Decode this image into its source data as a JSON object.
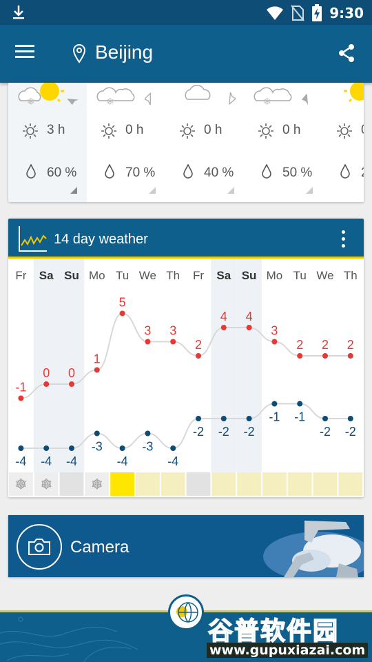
{
  "status_bar": {
    "time": "9:30",
    "icons": [
      "download-icon",
      "wifi-icon",
      "no-sim-icon",
      "battery-charging-icon"
    ]
  },
  "app_bar": {
    "city": "Beijing",
    "icons": [
      "menu-icon",
      "location-pin-icon",
      "share-icon"
    ]
  },
  "hourly": {
    "columns": [
      {
        "weather": "snow-sun",
        "sunshine": "3 h",
        "precip": "60 %"
      },
      {
        "weather": "snow-cloud",
        "sunshine": "0 h",
        "precip": "70 %"
      },
      {
        "weather": "cloud",
        "sunshine": "0 h",
        "precip": "40 %"
      },
      {
        "weather": "snow-cloud",
        "sunshine": "0 h",
        "precip": "50 %"
      },
      {
        "weather": "sun",
        "sunshine": "0",
        "precip": "2"
      }
    ]
  },
  "forecast": {
    "title": "14 day weather",
    "colors": {
      "max": "#e53935",
      "min": "#0f4c75",
      "sunny": "#ffe600",
      "partly": "#f5efbf",
      "overcast": "#e2e2e2",
      "weekend": "#eef2f6"
    },
    "days": [
      {
        "day": "Fr",
        "weekend": false,
        "condition": "snow"
      },
      {
        "day": "Sa",
        "weekend": true,
        "condition": "snow"
      },
      {
        "day": "Su",
        "weekend": true,
        "condition": "overcast"
      },
      {
        "day": "Mo",
        "weekend": false,
        "condition": "snow"
      },
      {
        "day": "Tu",
        "weekend": false,
        "condition": "sunny"
      },
      {
        "day": "We",
        "weekend": false,
        "condition": "partly"
      },
      {
        "day": "Th",
        "weekend": false,
        "condition": "partly"
      },
      {
        "day": "Fr",
        "weekend": false,
        "condition": "overcast"
      },
      {
        "day": "Sa",
        "weekend": true,
        "condition": "partly"
      },
      {
        "day": "Su",
        "weekend": true,
        "condition": "partly"
      },
      {
        "day": "Mo",
        "weekend": false,
        "condition": "partly"
      },
      {
        "day": "Tu",
        "weekend": false,
        "condition": "partly"
      },
      {
        "day": "We",
        "weekend": false,
        "condition": "partly"
      },
      {
        "day": "Th",
        "weekend": false,
        "condition": "partly"
      }
    ]
  },
  "chart_data": {
    "type": "line",
    "categories": [
      "Fr",
      "Sa",
      "Su",
      "Mo",
      "Tu",
      "We",
      "Th",
      "Fr",
      "Sa",
      "Su",
      "Mo",
      "Tu",
      "We",
      "Th"
    ],
    "series": [
      {
        "values": [
          -1,
          0,
          0,
          1,
          5,
          3,
          3,
          2,
          4,
          4,
          3,
          2,
          2,
          2
        ]
      },
      {
        "values": [
          -4,
          -4,
          -4,
          -3,
          -4,
          -3,
          -4,
          -2,
          -2,
          -2,
          -1,
          -1,
          -2,
          -2
        ]
      }
    ],
    "max_labels": [
      "-1",
      "0",
      "0",
      "1",
      "5",
      "3",
      "3",
      "2",
      "4",
      "4",
      "3",
      "2",
      "2",
      "2"
    ],
    "min_labels": [
      "-4",
      "-4",
      "-4",
      "-3",
      "-4",
      "-3",
      "-4",
      "-2",
      "-2",
      "-2",
      "-1",
      "-1",
      "-2",
      "-2"
    ]
  },
  "camera": {
    "label": "Camera"
  },
  "watermark": {
    "text": "谷普软件园",
    "url": "www.gupuxiazai.com"
  }
}
